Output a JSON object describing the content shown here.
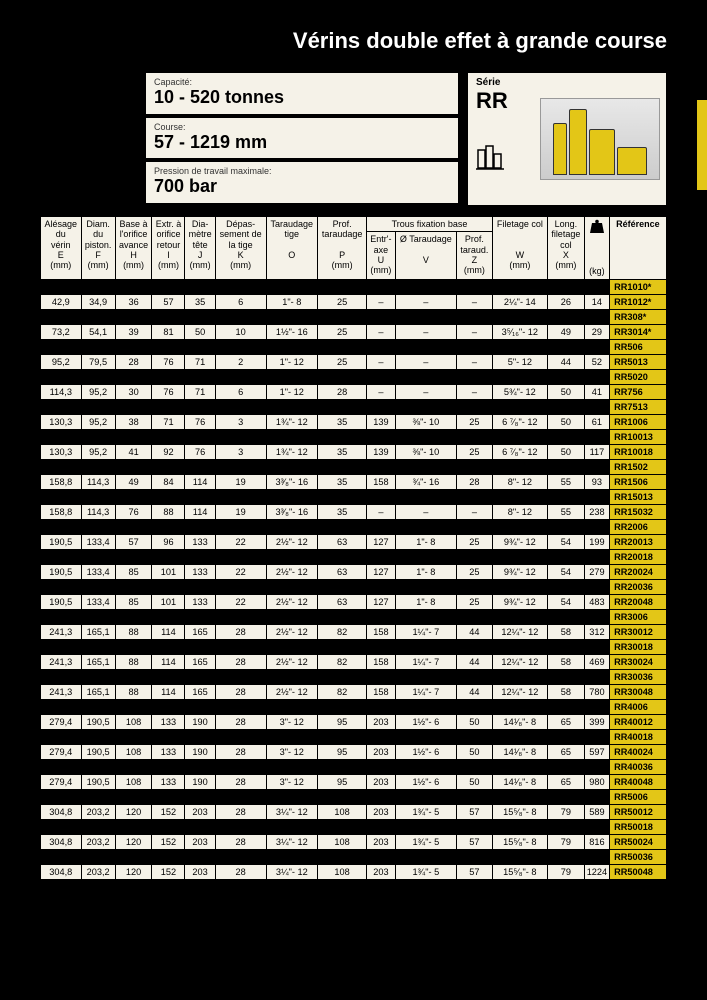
{
  "title": "Vérins double effet à grande course",
  "specs": {
    "capacity_label": "Capacité:",
    "capacity_value": "10 - 520 tonnes",
    "stroke_label": "Course:",
    "stroke_value": "57 - 1219 mm",
    "pressure_label": "Pression de travail maximale:",
    "pressure_value": "700 bar"
  },
  "serie": {
    "label": "Série",
    "value": "RR"
  },
  "colors": {
    "accent": "#e3c617",
    "cream": "#f5f2e8",
    "bg": "#000000"
  },
  "columns": [
    {
      "l1": "Alésage",
      "l2": "du",
      "l3": "vérin",
      "sym": "E",
      "unit": "(mm)"
    },
    {
      "l1": "Diam.",
      "l2": "du",
      "l3": "piston.",
      "sym": "F",
      "unit": "(mm)"
    },
    {
      "l1": "Base à",
      "l2": "l'orifice",
      "l3": "avance",
      "sym": "H",
      "unit": "(mm)"
    },
    {
      "l1": "Extr. à",
      "l2": "orifice",
      "l3": "retour",
      "sym": "I",
      "unit": "(mm)"
    },
    {
      "l1": "Dia-",
      "l2": "mètre",
      "l3": "tête",
      "sym": "J",
      "unit": "(mm)"
    },
    {
      "l1": "Dépas-",
      "l2": "sement de",
      "l3": "la tige",
      "sym": "K",
      "unit": "(mm)"
    },
    {
      "l1": "Taraudage",
      "l2": "tige",
      "l3": "",
      "sym": "O",
      "unit": ""
    },
    {
      "l1": "Prof.",
      "l2": "taraudage",
      "l3": "",
      "sym": "P",
      "unit": "(mm)"
    },
    {
      "group": "Trous fixation base"
    },
    {
      "l1": "Entr'-",
      "l2": "axe",
      "sym": "U",
      "unit": "(mm)"
    },
    {
      "l1": "Ø Taraudage",
      "l2": "",
      "sym": "V",
      "unit": ""
    },
    {
      "l1": "Prof.",
      "l2": "taraud.",
      "sym": "Z",
      "unit": "(mm)"
    },
    {
      "l1": "Filetage col",
      "l2": "",
      "l3": "",
      "sym": "W",
      "unit": "(mm)"
    },
    {
      "l1": "Long.",
      "l2": "filetage",
      "l3": "col",
      "sym": "X",
      "unit": "(mm)"
    },
    {
      "l1": "weight",
      "unit": "(kg)"
    },
    {
      "l1": "Référence"
    }
  ],
  "rows": [
    {
      "type": "ref",
      "ref": "RR1010*"
    },
    {
      "type": "data",
      "c": [
        "42,9",
        "34,9",
        "36",
        "57",
        "35",
        "6",
        "1\"- 8",
        "25",
        "–",
        "–",
        "–",
        "2¼\"- 14",
        "26",
        "14"
      ],
      "ref": "RR1012*"
    },
    {
      "type": "ref",
      "ref": "RR308*"
    },
    {
      "type": "data",
      "c": [
        "73,2",
        "54,1",
        "39",
        "81",
        "50",
        "10",
        "1½\"- 16",
        "25",
        "–",
        "–",
        "–",
        "3⁵⁄₁₆\"- 12",
        "49",
        "29"
      ],
      "ref": "RR3014*"
    },
    {
      "type": "ref",
      "ref": "RR506"
    },
    {
      "type": "data",
      "c": [
        "95,2",
        "79,5",
        "28",
        "76",
        "71",
        "2",
        "1\"- 12",
        "25",
        "–",
        "–",
        "–",
        "5\"- 12",
        "44",
        "52"
      ],
      "ref": "RR5013"
    },
    {
      "type": "ref",
      "ref": "RR5020"
    },
    {
      "type": "data",
      "c": [
        "114,3",
        "95,2",
        "30",
        "76",
        "71",
        "6",
        "1\"- 12",
        "28",
        "–",
        "–",
        "–",
        "5¾\"- 12",
        "50",
        "41"
      ],
      "ref": "RR756"
    },
    {
      "type": "ref",
      "ref": "RR7513"
    },
    {
      "type": "data",
      "c": [
        "130,3",
        "95,2",
        "38",
        "71",
        "76",
        "3",
        "1¾\"- 12",
        "35",
        "139",
        "⅜\"- 10",
        "25",
        "6 ⁷⁄₈\"- 12",
        "50",
        "61"
      ],
      "ref": "RR1006"
    },
    {
      "type": "ref",
      "ref": "RR10013"
    },
    {
      "type": "data",
      "c": [
        "130,3",
        "95,2",
        "41",
        "92",
        "76",
        "3",
        "1¾\"- 12",
        "35",
        "139",
        "⅜\"- 10",
        "25",
        "6 ⁷⁄₈\"- 12",
        "50",
        "117"
      ],
      "ref": "RR10018"
    },
    {
      "type": "ref",
      "ref": "RR1502"
    },
    {
      "type": "data",
      "c": [
        "158,8",
        "114,3",
        "49",
        "84",
        "114",
        "19",
        "3³⁄₈\"- 16",
        "35",
        "158",
        "¾\"- 16",
        "28",
        "8\"- 12",
        "55",
        "93"
      ],
      "ref": "RR1506"
    },
    {
      "type": "ref",
      "ref": "RR15013"
    },
    {
      "type": "data",
      "c": [
        "158,8",
        "114,3",
        "76",
        "88",
        "114",
        "19",
        "3³⁄₈\"- 16",
        "35",
        "–",
        "–",
        "–",
        "8\"- 12",
        "55",
        "238"
      ],
      "ref": "RR15032"
    },
    {
      "type": "ref",
      "ref": "RR2006"
    },
    {
      "type": "data",
      "c": [
        "190,5",
        "133,4",
        "57",
        "96",
        "133",
        "22",
        "2½\"- 12",
        "63",
        "127",
        "1\"- 8",
        "25",
        "9¾\"- 12",
        "54",
        "199"
      ],
      "ref": "RR20013"
    },
    {
      "type": "ref",
      "ref": "RR20018"
    },
    {
      "type": "data",
      "c": [
        "190,5",
        "133,4",
        "85",
        "101",
        "133",
        "22",
        "2½\"- 12",
        "63",
        "127",
        "1\"- 8",
        "25",
        "9¾\"- 12",
        "54",
        "279"
      ],
      "ref": "RR20024"
    },
    {
      "type": "ref",
      "ref": "RR20036"
    },
    {
      "type": "data",
      "c": [
        "190,5",
        "133,4",
        "85",
        "101",
        "133",
        "22",
        "2½\"- 12",
        "63",
        "127",
        "1\"- 8",
        "25",
        "9¾\"- 12",
        "54",
        "483"
      ],
      "ref": "RR20048"
    },
    {
      "type": "ref",
      "ref": "RR3006"
    },
    {
      "type": "data",
      "c": [
        "241,3",
        "165,1",
        "88",
        "114",
        "165",
        "28",
        "2½\"- 12",
        "82",
        "158",
        "1¼\"- 7",
        "44",
        "12¼\"- 12",
        "58",
        "312"
      ],
      "ref": "RR30012"
    },
    {
      "type": "ref",
      "ref": "RR30018"
    },
    {
      "type": "data",
      "c": [
        "241,3",
        "165,1",
        "88",
        "114",
        "165",
        "28",
        "2½\"- 12",
        "82",
        "158",
        "1¼\"- 7",
        "44",
        "12¼\"- 12",
        "58",
        "469"
      ],
      "ref": "RR30024"
    },
    {
      "type": "ref",
      "ref": "RR30036"
    },
    {
      "type": "data",
      "c": [
        "241,3",
        "165,1",
        "88",
        "114",
        "165",
        "28",
        "2½\"- 12",
        "82",
        "158",
        "1¼\"- 7",
        "44",
        "12¼\"- 12",
        "58",
        "780"
      ],
      "ref": "RR30048"
    },
    {
      "type": "ref",
      "ref": "RR4006"
    },
    {
      "type": "data",
      "c": [
        "279,4",
        "190,5",
        "108",
        "133",
        "190",
        "28",
        "3\"- 12",
        "95",
        "203",
        "1½\"- 6",
        "50",
        "14¹⁄₈\"- 8",
        "65",
        "399"
      ],
      "ref": "RR40012"
    },
    {
      "type": "ref",
      "ref": "RR40018"
    },
    {
      "type": "data",
      "c": [
        "279,4",
        "190,5",
        "108",
        "133",
        "190",
        "28",
        "3\"- 12",
        "95",
        "203",
        "1½\"- 6",
        "50",
        "14¹⁄₈\"- 8",
        "65",
        "597"
      ],
      "ref": "RR40024"
    },
    {
      "type": "ref",
      "ref": "RR40036"
    },
    {
      "type": "data",
      "c": [
        "279,4",
        "190,5",
        "108",
        "133",
        "190",
        "28",
        "3\"- 12",
        "95",
        "203",
        "1½\"- 6",
        "50",
        "14¹⁄₈\"- 8",
        "65",
        "980"
      ],
      "ref": "RR40048"
    },
    {
      "type": "ref",
      "ref": "RR5006"
    },
    {
      "type": "data",
      "c": [
        "304,8",
        "203,2",
        "120",
        "152",
        "203",
        "28",
        "3¼\"- 12",
        "108",
        "203",
        "1¾\"- 5",
        "57",
        "15⁵⁄₈\"- 8",
        "79",
        "589"
      ],
      "ref": "RR50012"
    },
    {
      "type": "ref",
      "ref": "RR50018"
    },
    {
      "type": "data",
      "c": [
        "304,8",
        "203,2",
        "120",
        "152",
        "203",
        "28",
        "3¼\"- 12",
        "108",
        "203",
        "1¾\"- 5",
        "57",
        "15⁵⁄₈\"- 8",
        "79",
        "816"
      ],
      "ref": "RR50024"
    },
    {
      "type": "ref",
      "ref": "RR50036"
    },
    {
      "type": "data",
      "c": [
        "304,8",
        "203,2",
        "120",
        "152",
        "203",
        "28",
        "3¼\"- 12",
        "108",
        "203",
        "1¾\"- 5",
        "57",
        "15⁵⁄₈\"- 8",
        "79",
        "1224"
      ],
      "ref": "RR50048"
    }
  ]
}
